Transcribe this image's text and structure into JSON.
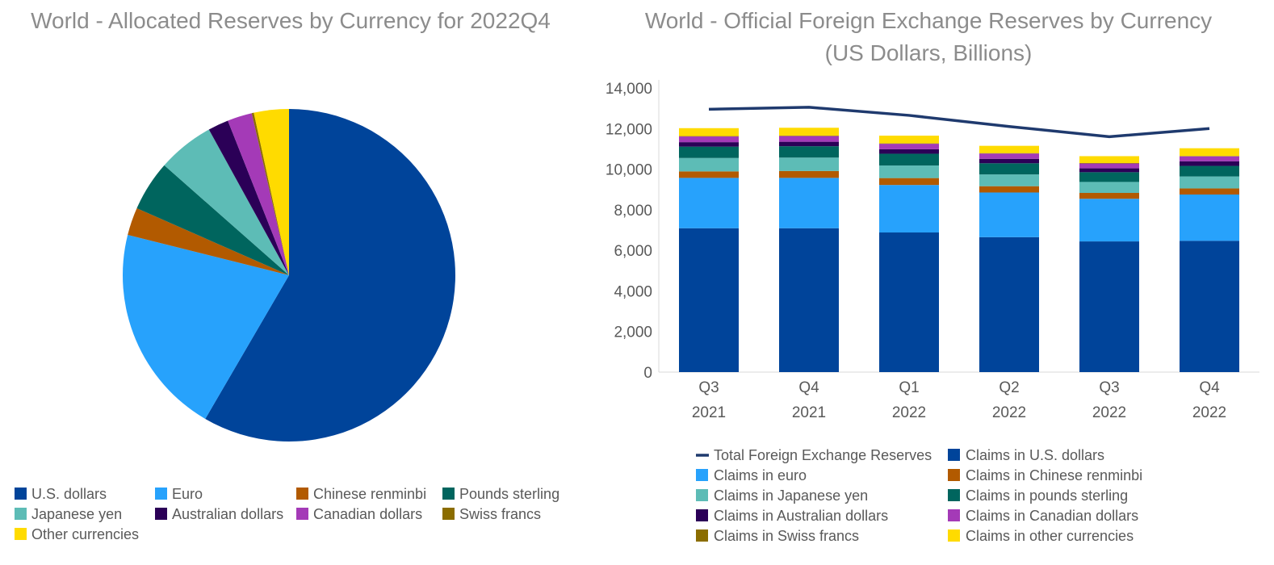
{
  "chart_data": [
    {
      "type": "pie",
      "title": "World - Allocated Reserves by Currency for 2022Q4",
      "categories": [
        "U.S. dollars",
        "Euro",
        "Chinese renminbi",
        "Pounds sterling",
        "Japanese yen",
        "Australian dollars",
        "Canadian dollars",
        "Swiss francs",
        "Other currencies"
      ],
      "values": [
        58.4,
        20.5,
        2.7,
        4.9,
        5.5,
        2.0,
        2.4,
        0.2,
        3.4
      ],
      "colors": [
        "#00449a",
        "#27a2fc",
        "#b25a00",
        "#00655e",
        "#5dbcb6",
        "#2b0057",
        "#a43ab7",
        "#8b6d00",
        "#ffdb00"
      ],
      "legend_position": "bottom"
    },
    {
      "type": "bar",
      "stacked": true,
      "title": "World - Official Foreign Exchange Reserves by Currency",
      "subtitle": "(US Dollars, Billions)",
      "categories": [
        [
          "Q3",
          "2021"
        ],
        [
          "Q4",
          "2021"
        ],
        [
          "Q1",
          "2022"
        ],
        [
          "Q2",
          "2022"
        ],
        [
          "Q3",
          "2022"
        ],
        [
          "Q4",
          "2022"
        ]
      ],
      "ylim": [
        0,
        14000
      ],
      "yticks": [
        "0",
        "2,000",
        "4,000",
        "6,000",
        "8,000",
        "10,000",
        "12,000",
        "14,000"
      ],
      "series": [
        {
          "name": "Claims in U.S. dollars",
          "color": "#00449a",
          "values": [
            7090,
            7090,
            6880,
            6650,
            6440,
            6470
          ]
        },
        {
          "name": "Claims in euro",
          "color": "#27a2fc",
          "values": [
            2480,
            2480,
            2340,
            2200,
            2100,
            2280
          ]
        },
        {
          "name": "Claims in Chinese renminbi",
          "color": "#b25a00",
          "values": [
            320,
            340,
            340,
            310,
            290,
            300
          ]
        },
        {
          "name": "Claims in Japanese yen",
          "color": "#5dbcb6",
          "values": [
            660,
            660,
            620,
            580,
            540,
            590
          ]
        },
        {
          "name": "Claims in pounds sterling",
          "color": "#00655e",
          "values": [
            560,
            560,
            580,
            550,
            480,
            520
          ]
        },
        {
          "name": "Claims in Australian dollars",
          "color": "#2b0057",
          "values": [
            220,
            220,
            220,
            220,
            190,
            230
          ]
        },
        {
          "name": "Claims in Canadian dollars",
          "color": "#a43ab7",
          "values": [
            280,
            280,
            270,
            260,
            240,
            240
          ]
        },
        {
          "name": "Claims in Swiss francs",
          "color": "#8b6d00",
          "values": [
            20,
            20,
            20,
            20,
            20,
            20
          ]
        },
        {
          "name": "Claims in other currencies",
          "color": "#ffdb00",
          "values": [
            390,
            390,
            380,
            360,
            340,
            380
          ]
        }
      ],
      "line": {
        "name": "Total Foreign Exchange Reserves",
        "color": "#1f3a6e",
        "values": [
          12950,
          13050,
          12650,
          12100,
          11600,
          12000
        ]
      },
      "legend_position": "bottom"
    }
  ]
}
